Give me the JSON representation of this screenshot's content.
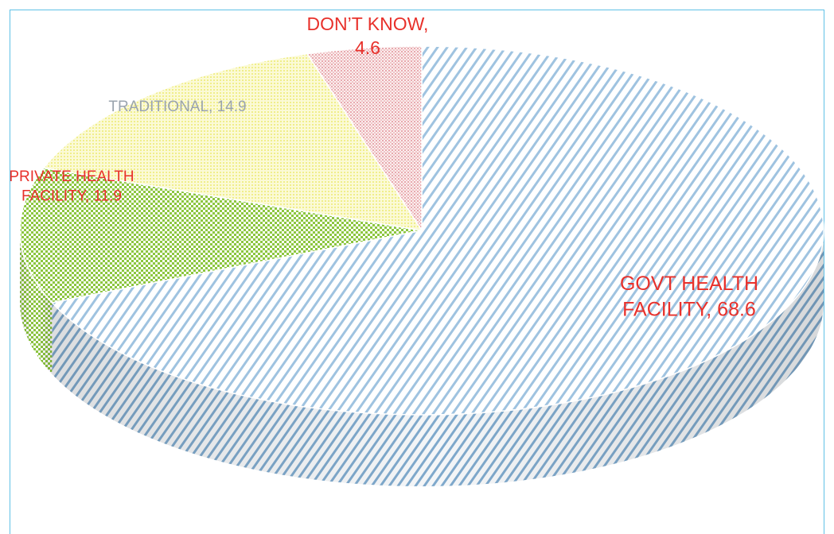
{
  "chart_data": {
    "type": "pie",
    "style": "3d",
    "slices": [
      {
        "name": "GOVT HEALTH FACILITY",
        "value": 68.6,
        "color": "#9fc3e0",
        "label_lines": [
          "GOVT HEALTH",
          "FACILITY, 68.6"
        ],
        "label_color": "#e8312b"
      },
      {
        "name": "PRIVATE HEALTH FACILITY",
        "value": 11.9,
        "color": "#8cc63f",
        "label_lines": [
          "PRIVATE HEALTH",
          "FACILITY, 11.9"
        ],
        "label_color": "#e8312b"
      },
      {
        "name": "TRADITIONAL",
        "value": 14.9,
        "color": "#f2f08a",
        "label_lines": [
          "TRADITIONAL, 14.9"
        ],
        "label_color": "#9aa4ae"
      },
      {
        "name": "DON’T KNOW",
        "value": 4.6,
        "color": "#e8a3a8",
        "label_lines": [
          "DON’T KNOW,",
          "4.6"
        ],
        "label_color": "#e8312b"
      }
    ]
  }
}
